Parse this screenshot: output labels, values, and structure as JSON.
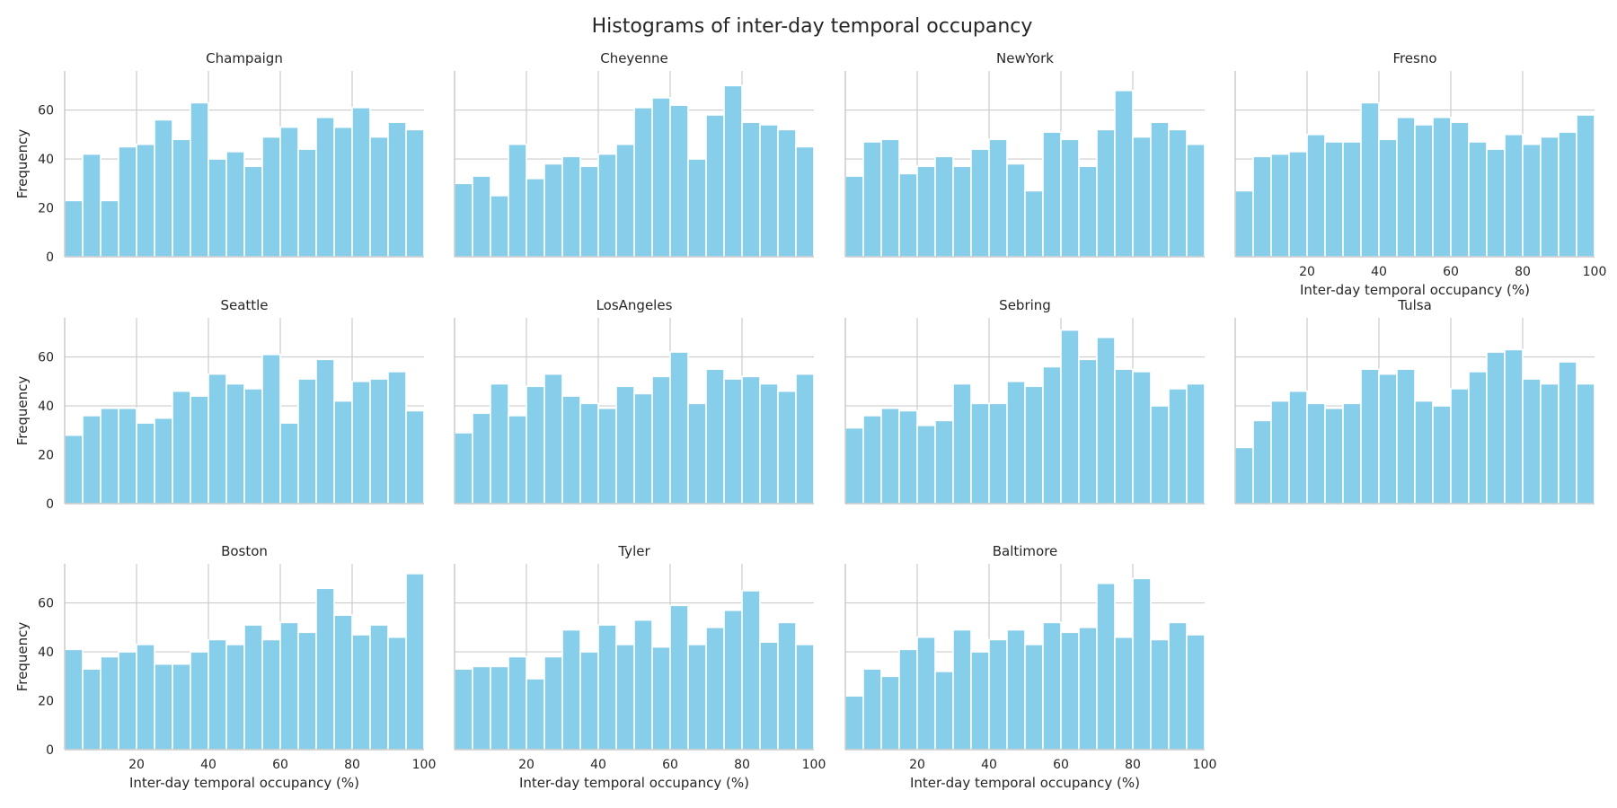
{
  "figure": {
    "title": "Histograms of inter-day temporal occupancy"
  },
  "colors": {
    "bar": "#87ceeb",
    "grid": "#cccccc",
    "axis": "#bfbfbf",
    "text": "#262626"
  },
  "chart_data": [
    {
      "type": "bar",
      "title": "Champaign",
      "xlabel": "",
      "ylabel": "Frequency",
      "xlim": [
        0,
        100
      ],
      "ylim": [
        0,
        76
      ],
      "xticks": [
        "20",
        "40",
        "60",
        "80",
        "100"
      ],
      "yticks": [
        "0",
        "20",
        "40",
        "60"
      ],
      "bin_width": 5,
      "grid": true,
      "values": [
        23,
        42,
        23,
        45,
        46,
        56,
        48,
        63,
        40,
        43,
        37,
        49,
        53,
        44,
        57,
        53,
        61,
        49,
        55,
        52
      ]
    },
    {
      "type": "bar",
      "title": "Cheyenne",
      "xlabel": "",
      "ylabel": "",
      "xlim": [
        0,
        100
      ],
      "ylim": [
        0,
        76
      ],
      "xticks": [
        "20",
        "40",
        "60",
        "80",
        "100"
      ],
      "yticks": [
        "0",
        "20",
        "40",
        "60"
      ],
      "bin_width": 5,
      "grid": true,
      "values": [
        30,
        33,
        25,
        46,
        32,
        38,
        41,
        37,
        42,
        46,
        61,
        65,
        62,
        40,
        58,
        70,
        55,
        54,
        52,
        45
      ]
    },
    {
      "type": "bar",
      "title": "NewYork",
      "xlabel": "",
      "ylabel": "",
      "xlim": [
        0,
        100
      ],
      "ylim": [
        0,
        76
      ],
      "xticks": [
        "20",
        "40",
        "60",
        "80",
        "100"
      ],
      "yticks": [
        "0",
        "20",
        "40",
        "60"
      ],
      "bin_width": 5,
      "grid": true,
      "values": [
        33,
        47,
        48,
        34,
        37,
        41,
        37,
        44,
        48,
        38,
        27,
        51,
        48,
        37,
        52,
        68,
        49,
        55,
        52,
        46
      ]
    },
    {
      "type": "bar",
      "title": "Fresno",
      "xlabel": "Inter-day temporal occupancy (%)",
      "ylabel": "",
      "xlim": [
        0,
        100
      ],
      "ylim": [
        0,
        76
      ],
      "xticks": [
        "20",
        "40",
        "60",
        "80",
        "100"
      ],
      "yticks": [
        "0",
        "20",
        "40",
        "60"
      ],
      "bin_width": 5,
      "grid": true,
      "values": [
        27,
        41,
        42,
        43,
        50,
        47,
        47,
        63,
        48,
        57,
        54,
        57,
        55,
        47,
        44,
        50,
        46,
        49,
        51,
        58
      ]
    },
    {
      "type": "bar",
      "title": "Seattle",
      "xlabel": "",
      "ylabel": "Frequency",
      "xlim": [
        0,
        100
      ],
      "ylim": [
        0,
        76
      ],
      "xticks": [
        "20",
        "40",
        "60",
        "80",
        "100"
      ],
      "yticks": [
        "0",
        "20",
        "40",
        "60"
      ],
      "bin_width": 5,
      "grid": true,
      "values": [
        28,
        36,
        39,
        39,
        33,
        35,
        46,
        44,
        53,
        49,
        47,
        61,
        33,
        51,
        59,
        42,
        50,
        51,
        54,
        38
      ]
    },
    {
      "type": "bar",
      "title": "LosAngeles",
      "xlabel": "",
      "ylabel": "",
      "xlim": [
        0,
        100
      ],
      "ylim": [
        0,
        76
      ],
      "xticks": [
        "20",
        "40",
        "60",
        "80",
        "100"
      ],
      "yticks": [
        "0",
        "20",
        "40",
        "60"
      ],
      "bin_width": 5,
      "grid": true,
      "values": [
        29,
        37,
        49,
        36,
        48,
        53,
        44,
        41,
        39,
        48,
        45,
        52,
        62,
        41,
        55,
        51,
        52,
        49,
        46,
        53
      ]
    },
    {
      "type": "bar",
      "title": "Sebring",
      "xlabel": "",
      "ylabel": "",
      "xlim": [
        0,
        100
      ],
      "ylim": [
        0,
        76
      ],
      "xticks": [
        "20",
        "40",
        "60",
        "80",
        "100"
      ],
      "yticks": [
        "0",
        "20",
        "40",
        "60"
      ],
      "bin_width": 5,
      "grid": true,
      "values": [
        31,
        36,
        39,
        38,
        32,
        34,
        49,
        41,
        41,
        50,
        48,
        56,
        71,
        59,
        68,
        55,
        54,
        40,
        47,
        49
      ]
    },
    {
      "type": "bar",
      "title": "Tulsa",
      "xlabel": "",
      "ylabel": "",
      "xlim": [
        0,
        100
      ],
      "ylim": [
        0,
        76
      ],
      "xticks": [
        "20",
        "40",
        "60",
        "80",
        "100"
      ],
      "yticks": [
        "0",
        "20",
        "40",
        "60"
      ],
      "bin_width": 5,
      "grid": true,
      "values": [
        23,
        34,
        42,
        46,
        41,
        39,
        41,
        55,
        53,
        55,
        42,
        40,
        47,
        54,
        62,
        63,
        51,
        49,
        58,
        49
      ]
    },
    {
      "type": "bar",
      "title": "Boston",
      "xlabel": "Inter-day temporal occupancy (%)",
      "ylabel": "Frequency",
      "xlim": [
        0,
        100
      ],
      "ylim": [
        0,
        76
      ],
      "xticks": [
        "20",
        "40",
        "60",
        "80",
        "100"
      ],
      "yticks": [
        "0",
        "20",
        "40",
        "60"
      ],
      "bin_width": 5,
      "grid": true,
      "values": [
        41,
        33,
        38,
        40,
        43,
        35,
        35,
        40,
        45,
        43,
        51,
        45,
        52,
        48,
        66,
        55,
        47,
        51,
        46,
        72
      ]
    },
    {
      "type": "bar",
      "title": "Tyler",
      "xlabel": "Inter-day temporal occupancy (%)",
      "ylabel": "",
      "xlim": [
        0,
        100
      ],
      "ylim": [
        0,
        76
      ],
      "xticks": [
        "20",
        "40",
        "60",
        "80",
        "100"
      ],
      "yticks": [
        "0",
        "20",
        "40",
        "60"
      ],
      "bin_width": 5,
      "grid": true,
      "values": [
        33,
        34,
        34,
        38,
        29,
        38,
        49,
        40,
        51,
        43,
        53,
        42,
        59,
        43,
        50,
        57,
        65,
        44,
        52,
        43
      ]
    },
    {
      "type": "bar",
      "title": "Baltimore",
      "xlabel": "Inter-day temporal occupancy (%)",
      "ylabel": "",
      "xlim": [
        0,
        100
      ],
      "ylim": [
        0,
        76
      ],
      "xticks": [
        "20",
        "40",
        "60",
        "80",
        "100"
      ],
      "yticks": [
        "0",
        "20",
        "40",
        "60"
      ],
      "bin_width": 5,
      "grid": true,
      "values": [
        22,
        33,
        30,
        41,
        46,
        32,
        49,
        40,
        45,
        49,
        43,
        52,
        48,
        50,
        68,
        46,
        70,
        45,
        52,
        47
      ]
    }
  ]
}
